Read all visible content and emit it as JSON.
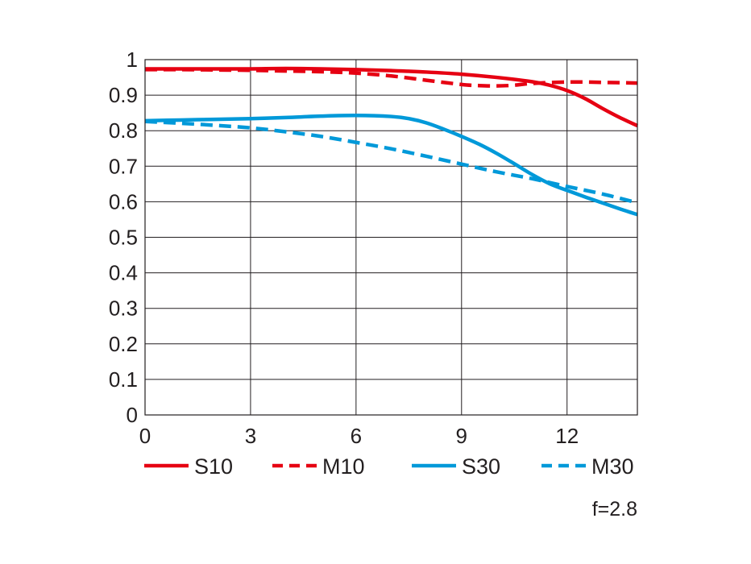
{
  "chart_data": {
    "type": "line",
    "title": "",
    "xlabel": "",
    "ylabel": "",
    "xlim": [
      0,
      14
    ],
    "ylim": [
      0,
      1
    ],
    "xticks": [
      0,
      3,
      6,
      9,
      12
    ],
    "xtick_labels": [
      "0",
      "3",
      "6",
      "9",
      "12"
    ],
    "yticks": [
      0,
      0.1,
      0.2,
      0.3,
      0.4,
      0.5,
      0.6,
      0.7,
      0.8,
      0.9,
      1
    ],
    "ytick_labels": [
      "0",
      "0.1",
      "0.2",
      "0.3",
      "0.4",
      "0.5",
      "0.6",
      "0.7",
      "0.8",
      "0.9",
      "1"
    ],
    "grid": true,
    "legend_position": "bottom",
    "annotation": "f=2.8",
    "series": [
      {
        "name": "S10",
        "color": "#e60012",
        "dash": "solid",
        "x": [
          0,
          1,
          2,
          3,
          4,
          5,
          6,
          7,
          8,
          9,
          10,
          11,
          11.5,
          12,
          12.5,
          13,
          13.5,
          14
        ],
        "y": [
          0.974,
          0.974,
          0.974,
          0.974,
          0.975,
          0.974,
          0.972,
          0.969,
          0.965,
          0.959,
          0.95,
          0.938,
          0.928,
          0.913,
          0.891,
          0.863,
          0.837,
          0.814
        ]
      },
      {
        "name": "M10",
        "color": "#e60012",
        "dash": "dashed",
        "x": [
          0,
          1,
          2,
          3,
          4,
          5,
          6,
          7,
          8,
          9,
          9.5,
          10,
          10.5,
          11,
          12,
          13,
          14
        ],
        "y": [
          0.972,
          0.972,
          0.971,
          0.97,
          0.968,
          0.966,
          0.962,
          0.954,
          0.942,
          0.93,
          0.927,
          0.926,
          0.928,
          0.933,
          0.937,
          0.936,
          0.934
        ]
      },
      {
        "name": "S30",
        "color": "#0099d9",
        "dash": "solid",
        "x": [
          0,
          1,
          2,
          3,
          4,
          5,
          6,
          7,
          7.5,
          8,
          8.5,
          9,
          9.5,
          10,
          10.5,
          11,
          11.5,
          12,
          12.5,
          13,
          13.5,
          14
        ],
        "y": [
          0.828,
          0.83,
          0.832,
          0.834,
          0.837,
          0.841,
          0.843,
          0.84,
          0.834,
          0.822,
          0.804,
          0.784,
          0.762,
          0.736,
          0.707,
          0.677,
          0.651,
          0.632,
          0.614,
          0.597,
          0.58,
          0.564
        ]
      },
      {
        "name": "M30",
        "color": "#0099d9",
        "dash": "dashed",
        "x": [
          0,
          1,
          2,
          3,
          4,
          5,
          6,
          7,
          8,
          9,
          10,
          11,
          12,
          13,
          14
        ],
        "y": [
          0.826,
          0.821,
          0.815,
          0.808,
          0.797,
          0.784,
          0.767,
          0.749,
          0.728,
          0.706,
          0.684,
          0.665,
          0.643,
          0.622,
          0.597
        ]
      }
    ]
  }
}
